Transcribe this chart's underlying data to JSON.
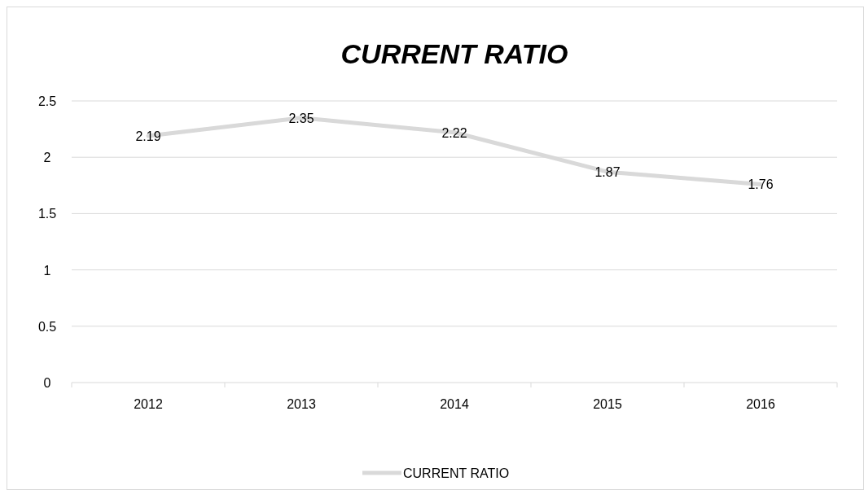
{
  "chart_data": {
    "type": "line",
    "title": "CURRENT RATIO",
    "categories": [
      "2012",
      "2013",
      "2014",
      "2015",
      "2016"
    ],
    "series": [
      {
        "name": "CURRENT RATIO",
        "color": "#d9d9d9",
        "values": [
          2.19,
          2.35,
          2.22,
          1.87,
          1.76
        ]
      }
    ],
    "ylim": [
      0,
      2.5
    ],
    "yticks": [
      0,
      0.5,
      1,
      1.5,
      2,
      2.5
    ],
    "grid": "y",
    "legend": "bottom",
    "data_labels": true,
    "marker": "none",
    "line_style": "solid"
  }
}
